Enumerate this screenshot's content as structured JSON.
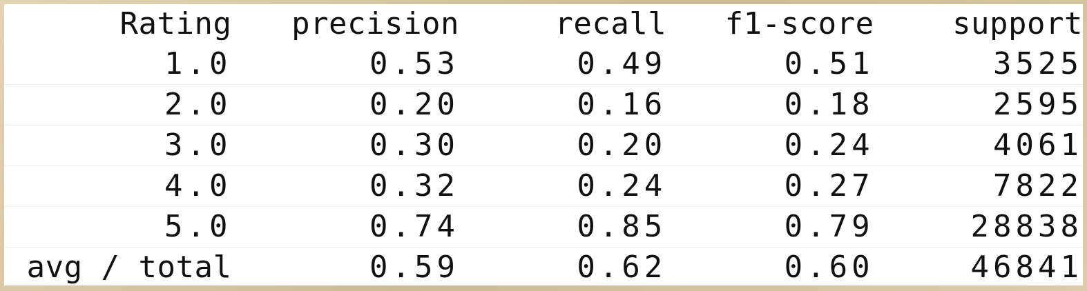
{
  "report": {
    "headers": [
      "Rating",
      "precision",
      "recall",
      "f1-score",
      "support"
    ],
    "rows": [
      [
        "1.0",
        "0.53",
        "0.49",
        "0.51",
        "3525"
      ],
      [
        "2.0",
        "0.20",
        "0.16",
        "0.18",
        "2595"
      ],
      [
        "3.0",
        "0.30",
        "0.20",
        "0.24",
        "4061"
      ],
      [
        "4.0",
        "0.32",
        "0.24",
        "0.27",
        "7822"
      ],
      [
        "5.0",
        "0.74",
        "0.85",
        "0.79",
        "28838"
      ]
    ],
    "total": [
      "avg / total",
      "0.59",
      "0.62",
      "0.60",
      "46841"
    ]
  }
}
